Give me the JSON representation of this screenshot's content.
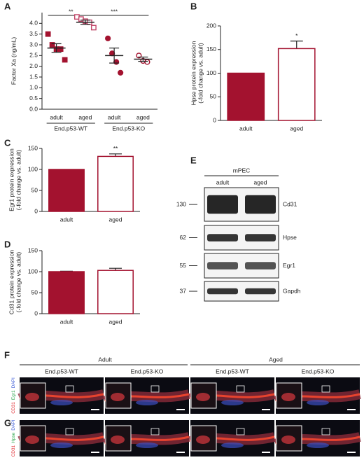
{
  "chart_data": [
    {
      "type": "dotplot",
      "panel": "A",
      "ylabel": [
        "Factor Xa (ng/mL)"
      ],
      "categories": [
        "adult",
        "aged",
        "adult",
        "aged"
      ],
      "groups": [
        "End.p53-WT",
        "End.p53-KO"
      ],
      "points": [
        [
          3.5,
          3.0,
          2.8,
          2.8,
          2.3
        ],
        [
          4.3,
          4.2,
          4.1,
          4.05,
          3.8
        ],
        [
          3.3,
          2.6,
          2.2,
          1.7
        ],
        [
          2.5,
          2.25,
          2.2
        ]
      ],
      "means": [
        2.85,
        4.05,
        2.5,
        2.33
      ],
      "errors": [
        0.2,
        0.1,
        0.35,
        0.1
      ],
      "markers": [
        "square",
        "square",
        "circle",
        "circle"
      ],
      "filled": [
        true,
        false,
        true,
        false
      ],
      "colors": [
        "#a3122f",
        "#c2476a",
        "#a3122f",
        "#a3122f"
      ],
      "annotations": [
        "**",
        "***"
      ],
      "ylim": [
        0,
        4.5
      ],
      "yticks": [
        {
          "value": 0,
          "label": "0.0"
        },
        {
          "value": 0.5,
          "label": "0.5"
        },
        {
          "value": 1,
          "label": "1.0"
        },
        {
          "value": 1.5,
          "label": "1.5"
        },
        {
          "value": 2,
          "label": "2.0"
        },
        {
          "value": 2.5,
          "label": "2.5"
        },
        {
          "value": 3,
          "label": "3.0"
        },
        {
          "value": 3.5,
          "label": "3.5"
        },
        {
          "value": 4,
          "label": "4.0"
        }
      ]
    },
    {
      "type": "bar",
      "panel": "B",
      "ylabel": [
        "Hpse protein expression",
        "(-fold change vs. adult)"
      ],
      "categories": [
        "adult",
        "aged"
      ],
      "values": [
        100,
        152
      ],
      "errors": [
        0,
        16
      ],
      "color": "#a3122f",
      "fills": [
        "#a3122f",
        "#ffffff"
      ],
      "annotation": "*",
      "ylim": [
        0,
        200
      ],
      "yticks": [
        0,
        50,
        100,
        150,
        200
      ]
    },
    {
      "type": "bar",
      "panel": "C",
      "ylabel": [
        "Egr1 protein expression",
        "(-fold change vs. adult)"
      ],
      "categories": [
        "adult",
        "aged"
      ],
      "values": [
        100,
        131
      ],
      "errors": [
        0,
        6
      ],
      "color": "#a3122f",
      "fills": [
        "#a3122f",
        "#ffffff"
      ],
      "annotation": "**",
      "ylim": [
        0,
        150
      ],
      "yticks": [
        0,
        50,
        100,
        150
      ]
    },
    {
      "type": "bar",
      "panel": "D",
      "ylabel": [
        "Cd31 protein expression",
        "(-fold change vs. adult)"
      ],
      "categories": [
        "adult",
        "aged"
      ],
      "values": [
        100,
        103
      ],
      "errors": [
        1,
        5
      ],
      "color": "#a3122f",
      "fills": [
        "#a3122f",
        "#ffffff"
      ],
      "ylim": [
        0,
        150
      ],
      "yticks": [
        0,
        50,
        100,
        150
      ]
    }
  ],
  "blot": {
    "panel": "E",
    "title": "mPEC",
    "lanes": [
      "adult",
      "aged"
    ],
    "rows": [
      {
        "marker": 130,
        "protein": "Cd31"
      },
      {
        "marker": 62,
        "protein": "Hpse"
      },
      {
        "marker": 55,
        "protein": "Egr1"
      },
      {
        "marker": 37,
        "protein": "Gapdh"
      }
    ]
  },
  "micrographs": {
    "ages": [
      "Adult",
      "Aged"
    ],
    "genotypes": [
      "End.p53-WT",
      "End.p53-KO",
      "End.p53-WT",
      "End.p53-KO"
    ],
    "rows": [
      {
        "panel": "F",
        "stain": [
          "CD31",
          "Egr1",
          "DAPI"
        ]
      },
      {
        "panel": "G",
        "stain": [
          "CD31",
          "Hpse",
          "DAPI"
        ]
      }
    ]
  }
}
